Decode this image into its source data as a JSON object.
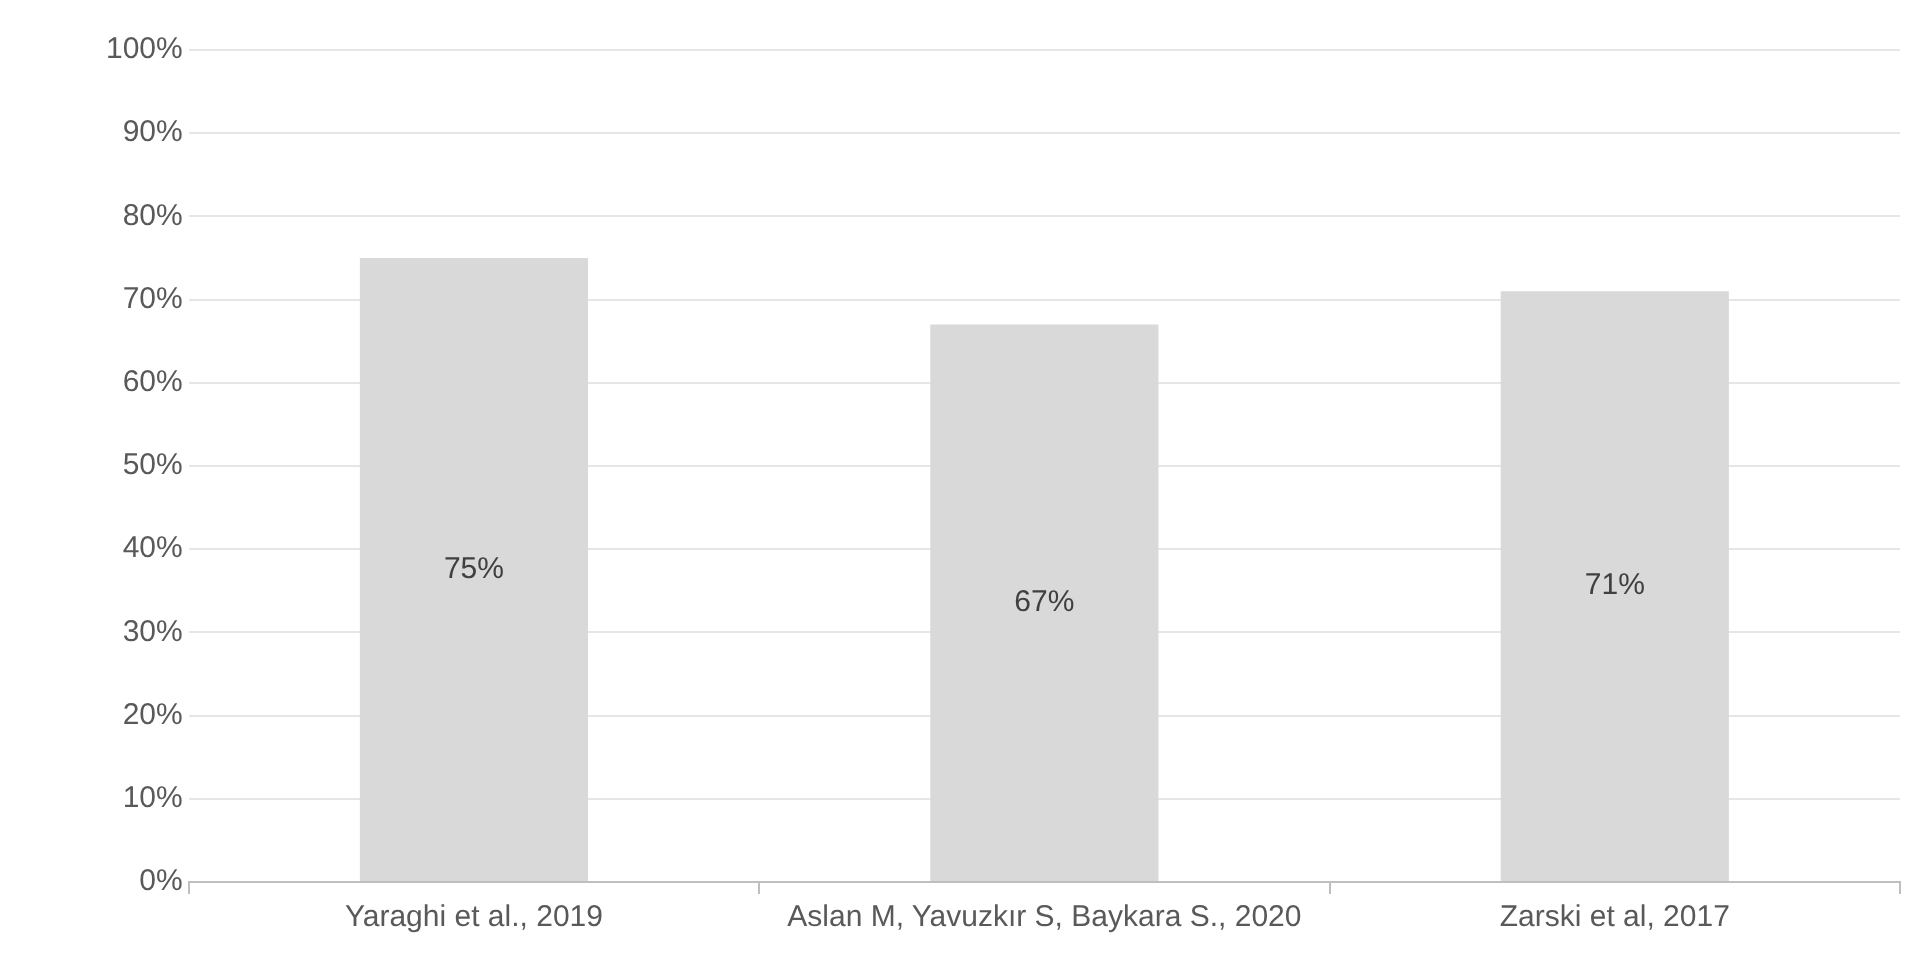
{
  "chart_data": {
    "type": "bar",
    "categories": [
      "Yaraghi et al., 2019",
      "Aslan M, Yavuzkır S, Baykara S., 2020",
      "Zarski et al, 2017"
    ],
    "values": [
      75,
      67,
      71
    ],
    "color": "#d9d9d9",
    "value_labels": [
      "75%",
      "67%",
      "71%"
    ],
    "ylim": [
      0,
      100
    ],
    "yticks": [
      {
        "value": 0,
        "label": "0%"
      },
      {
        "value": 10,
        "label": "10%"
      },
      {
        "value": 20,
        "label": "20%"
      },
      {
        "value": 30,
        "label": "30%"
      },
      {
        "value": 40,
        "label": "40%"
      },
      {
        "value": 50,
        "label": "50%"
      },
      {
        "value": 60,
        "label": "60%"
      },
      {
        "value": 70,
        "label": "70%"
      },
      {
        "value": 80,
        "label": "80%"
      },
      {
        "value": 90,
        "label": "90%"
      },
      {
        "value": 100,
        "label": "100%"
      }
    ],
    "grid": "y"
  }
}
